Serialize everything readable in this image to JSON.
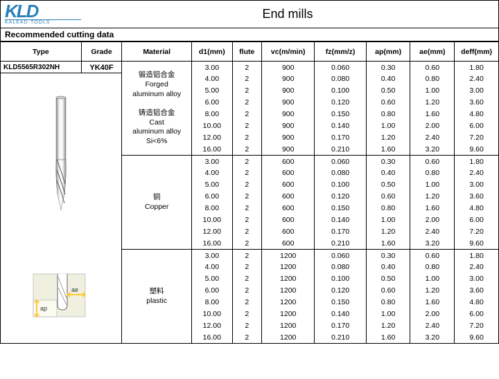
{
  "logo": {
    "main": "KLD",
    "sub": "KALEAD·TOOLS"
  },
  "title": "End mills",
  "subtitle": "Recommended cutting data",
  "columns": [
    "Type",
    "Grade",
    "Material",
    "d1(mm)",
    "flute",
    "vc(m/min)",
    "fz(mm/z)",
    "ap(mm)",
    "ae(mm)",
    "deff(mm)"
  ],
  "type_value": "KLD5565R302NH",
  "grade_value": "YK40F",
  "materials": [
    {
      "labels": [
        "锻造铝合金",
        "Forged",
        "aluminum alloy",
        "",
        "铸造铝合金",
        "Cast",
        "aluminum alloy",
        "Si<6%"
      ]
    },
    {
      "labels": [
        "",
        "",
        "",
        "铜",
        "Copper",
        "",
        "",
        ""
      ]
    },
    {
      "labels": [
        "",
        "",
        "",
        "塑料",
        "plastic",
        "",
        "",
        ""
      ]
    }
  ],
  "sections": [
    {
      "vc": "900",
      "rows": [
        {
          "d1": "3.00",
          "fl": "2",
          "fz": "0.060",
          "ap": "0.30",
          "ae": "0.60",
          "deff": "1.80"
        },
        {
          "d1": "4.00",
          "fl": "2",
          "fz": "0.080",
          "ap": "0.40",
          "ae": "0.80",
          "deff": "2.40"
        },
        {
          "d1": "5.00",
          "fl": "2",
          "fz": "0.100",
          "ap": "0.50",
          "ae": "1.00",
          "deff": "3.00"
        },
        {
          "d1": "6.00",
          "fl": "2",
          "fz": "0.120",
          "ap": "0.60",
          "ae": "1.20",
          "deff": "3.60"
        },
        {
          "d1": "8.00",
          "fl": "2",
          "fz": "0.150",
          "ap": "0.80",
          "ae": "1.60",
          "deff": "4.80"
        },
        {
          "d1": "10.00",
          "fl": "2",
          "fz": "0.140",
          "ap": "1.00",
          "ae": "2.00",
          "deff": "6.00"
        },
        {
          "d1": "12.00",
          "fl": "2",
          "fz": "0.170",
          "ap": "1.20",
          "ae": "2.40",
          "deff": "7.20"
        },
        {
          "d1": "16.00",
          "fl": "2",
          "fz": "0.210",
          "ap": "1.60",
          "ae": "3.20",
          "deff": "9.60"
        }
      ]
    },
    {
      "vc": "600",
      "rows": [
        {
          "d1": "3.00",
          "fl": "2",
          "fz": "0.060",
          "ap": "0.30",
          "ae": "0.60",
          "deff": "1.80"
        },
        {
          "d1": "4.00",
          "fl": "2",
          "fz": "0.080",
          "ap": "0.40",
          "ae": "0.80",
          "deff": "2.40"
        },
        {
          "d1": "5.00",
          "fl": "2",
          "fz": "0.100",
          "ap": "0.50",
          "ae": "1.00",
          "deff": "3.00"
        },
        {
          "d1": "6.00",
          "fl": "2",
          "fz": "0.120",
          "ap": "0.60",
          "ae": "1.20",
          "deff": "3.60"
        },
        {
          "d1": "8.00",
          "fl": "2",
          "fz": "0.150",
          "ap": "0.80",
          "ae": "1.60",
          "deff": "4.80"
        },
        {
          "d1": "10.00",
          "fl": "2",
          "fz": "0.140",
          "ap": "1.00",
          "ae": "2.00",
          "deff": "6.00"
        },
        {
          "d1": "12.00",
          "fl": "2",
          "fz": "0.170",
          "ap": "1.20",
          "ae": "2.40",
          "deff": "7.20"
        },
        {
          "d1": "16.00",
          "fl": "2",
          "fz": "0.210",
          "ap": "1.60",
          "ae": "3.20",
          "deff": "9.60"
        }
      ]
    },
    {
      "vc": "1200",
      "rows": [
        {
          "d1": "3.00",
          "fl": "2",
          "fz": "0.060",
          "ap": "0.30",
          "ae": "0.60",
          "deff": "1.80"
        },
        {
          "d1": "4.00",
          "fl": "2",
          "fz": "0.080",
          "ap": "0.40",
          "ae": "0.80",
          "deff": "2.40"
        },
        {
          "d1": "5.00",
          "fl": "2",
          "fz": "0.100",
          "ap": "0.50",
          "ae": "1.00",
          "deff": "3.00"
        },
        {
          "d1": "6.00",
          "fl": "2",
          "fz": "0.120",
          "ap": "0.60",
          "ae": "1.20",
          "deff": "3.60"
        },
        {
          "d1": "8.00",
          "fl": "2",
          "fz": "0.150",
          "ap": "0.80",
          "ae": "1.60",
          "deff": "4.80"
        },
        {
          "d1": "10.00",
          "fl": "2",
          "fz": "0.140",
          "ap": "1.00",
          "ae": "2.00",
          "deff": "6.00"
        },
        {
          "d1": "12.00",
          "fl": "2",
          "fz": "0.170",
          "ap": "1.20",
          "ae": "2.40",
          "deff": "7.20"
        },
        {
          "d1": "16.00",
          "fl": "2",
          "fz": "0.210",
          "ap": "1.60",
          "ae": "3.20",
          "deff": "9.60"
        }
      ]
    }
  ],
  "diagram_labels": {
    "ap": "ap",
    "ae": "ae"
  },
  "colors": {
    "brand": "#2980b9",
    "border": "#000000",
    "metal1": "#d0d0d0",
    "metal2": "#888888",
    "diag_bg": "#f0f0e0",
    "arrow": "#ffcc33"
  }
}
